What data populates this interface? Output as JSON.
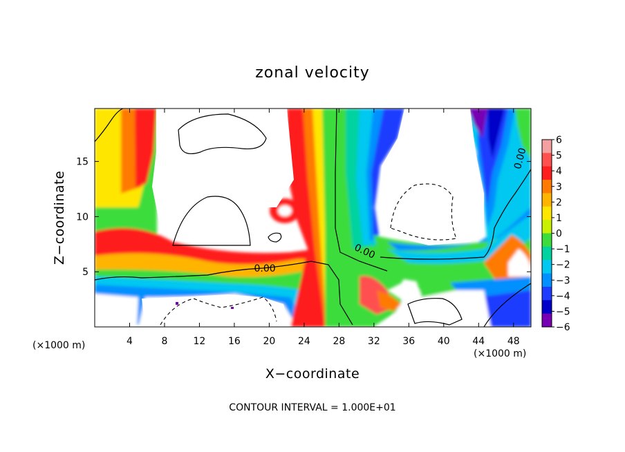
{
  "chart_data": {
    "type": "heatmap",
    "title": "zonal velocity",
    "xlabel": "X−coordinate",
    "ylabel": "Z−coordinate",
    "x_unit_left": "(×1000 m)",
    "x_unit_right": "(×1000 m)",
    "footer": "CONTOUR INTERVAL = 1.000E+01",
    "xlim": [
      0,
      50
    ],
    "ylim": [
      0,
      19.8
    ],
    "x_ticks": [
      4,
      8,
      12,
      16,
      20,
      24,
      28,
      32,
      36,
      40,
      44,
      48
    ],
    "y_ticks": [
      5,
      10,
      15
    ],
    "colorbar": {
      "range": [
        -6,
        6
      ],
      "labels": [
        "6",
        "5",
        "4",
        "3",
        "2",
        "1",
        "0",
        "−1",
        "−2",
        "−3",
        "−4",
        "−5",
        "−6"
      ],
      "colors": [
        "#f5a0a0",
        "#ff5050",
        "#ff1e1e",
        "#ff7a00",
        "#ffb400",
        "#ffe600",
        "#c8f000",
        "#3cdc3c",
        "#00d2a0",
        "#00c8f0",
        "#0090ff",
        "#1e3cff",
        "#0000c8",
        "#7800b4"
      ]
    },
    "contour_labels": [
      {
        "text": "0.00",
        "x": 19.5,
        "y": 5.0
      },
      {
        "text": "0.00",
        "x": 30.8,
        "y": 6.6
      },
      {
        "text": "0.00",
        "x": 49.1,
        "y": 15.2
      }
    ]
  }
}
